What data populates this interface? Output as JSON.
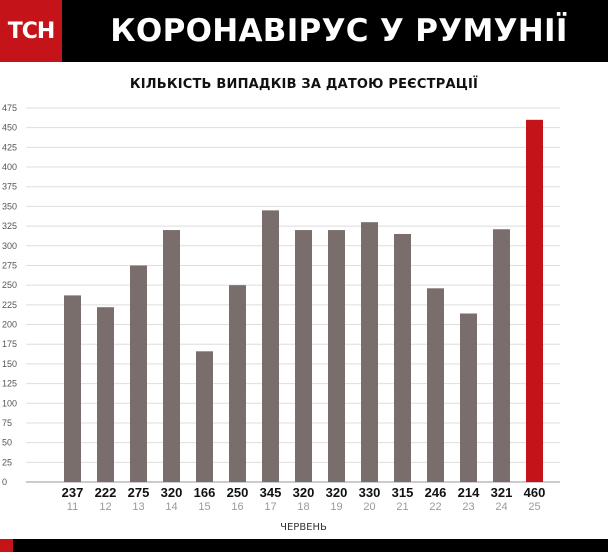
{
  "header": {
    "logo": "TCH",
    "title": "КОРОНАВІРУС У РУМУНІЇ"
  },
  "colors": {
    "brand_red": "#c4141a",
    "bar_default": "#7a6e6c",
    "bar_highlight": "#c4141a",
    "header_bg": "#000000"
  },
  "chart_data": {
    "type": "bar",
    "title": "КІЛЬКІСТЬ ВИПАДКІВ ЗА ДАТОЮ РЕЄСТРАЦІЇ",
    "xlabel": "ЧЕРВЕНЬ",
    "ylabel": "",
    "categories": [
      "11",
      "12",
      "13",
      "14",
      "15",
      "16",
      "17",
      "18",
      "19",
      "20",
      "21",
      "22",
      "23",
      "24",
      "25"
    ],
    "values": [
      237,
      222,
      275,
      320,
      166,
      250,
      345,
      320,
      320,
      330,
      315,
      246,
      214,
      321,
      460
    ],
    "highlight_index": 14,
    "ylim": [
      0,
      475
    ],
    "yticks": [
      0,
      25,
      50,
      75,
      100,
      125,
      150,
      175,
      200,
      225,
      250,
      275,
      300,
      325,
      350,
      375,
      400,
      425,
      450,
      475
    ],
    "grid": true,
    "legend": "none"
  }
}
